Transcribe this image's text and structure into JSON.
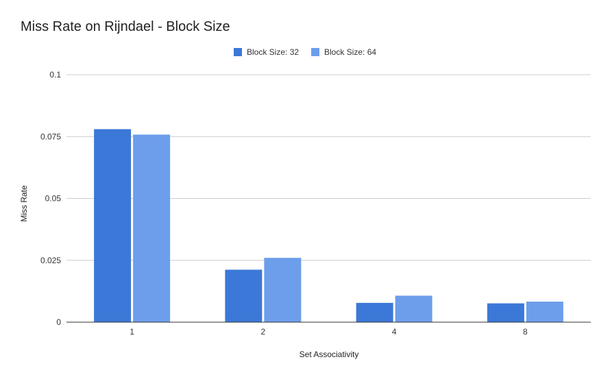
{
  "chart_data": {
    "type": "bar",
    "title": "Miss Rate on Rijndael - Block Size",
    "xlabel": "Set Associativity",
    "ylabel": "Miss Rate",
    "categories": [
      "1",
      "2",
      "4",
      "8"
    ],
    "series": [
      {
        "name": "Block Size: 32",
        "color": "#3c78d8",
        "values": [
          0.078,
          0.0212,
          0.0078,
          0.0076
        ]
      },
      {
        "name": "Block Size: 64",
        "color": "#6d9eeb",
        "values": [
          0.0758,
          0.026,
          0.0107,
          0.0083
        ]
      }
    ],
    "ylim": [
      0,
      0.1
    ],
    "yticks": [
      "0",
      "0.025",
      "0.05",
      "0.075",
      "0.1"
    ],
    "ytick_values": [
      0,
      0.025,
      0.05,
      0.075,
      0.1
    ],
    "grid": true,
    "legend_position": "top-center",
    "gridline_color": "#cccccc",
    "axis_color": "#333333"
  }
}
